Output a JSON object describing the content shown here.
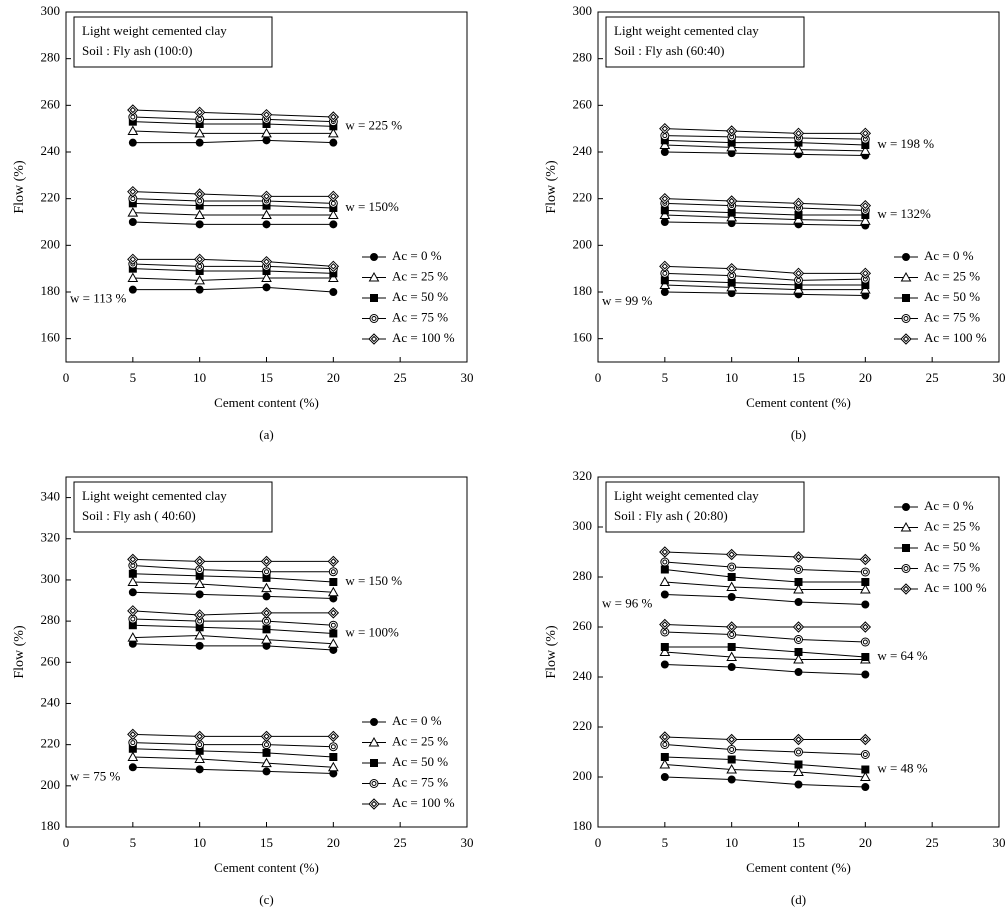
{
  "chart_data": [
    {
      "type": "line",
      "panel": "(a)",
      "box": [
        "Light weight cemented clay",
        "Soil : Fly ash (100:0)"
      ],
      "xlabel": "Cement content (%)",
      "ylabel": "Flow (%)",
      "xlim": [
        0,
        30
      ],
      "xticks": [
        0,
        5,
        10,
        15,
        20,
        25,
        30
      ],
      "ylim": [
        150,
        300
      ],
      "yticks": [
        160,
        180,
        200,
        220,
        240,
        260,
        280,
        300
      ],
      "legend": "lower right",
      "x": [
        5,
        10,
        15,
        20
      ],
      "legend_entries": [
        {
          "name": "Ac = 0 %",
          "marker": "circle-filled"
        },
        {
          "name": "Ac = 25 %",
          "marker": "triangle-open"
        },
        {
          "name": "Ac = 50 %",
          "marker": "square-filled"
        },
        {
          "name": "Ac = 75 %",
          "marker": "circle-ring"
        },
        {
          "name": "Ac = 100 %",
          "marker": "diamond-ring"
        }
      ],
      "groups": [
        {
          "label": "w = 225 %",
          "label_side": "right",
          "series": [
            [
              244,
              244,
              245,
              244
            ],
            [
              249,
              248,
              248,
              248
            ],
            [
              253,
              252,
              252,
              251
            ],
            [
              255,
              254,
              254,
              253
            ],
            [
              258,
              257,
              256,
              255
            ]
          ]
        },
        {
          "label": "w = 150%",
          "label_side": "right",
          "series": [
            [
              210,
              209,
              209,
              209
            ],
            [
              214,
              213,
              213,
              213
            ],
            [
              218,
              217,
              217,
              216
            ],
            [
              220,
              219,
              219,
              218
            ],
            [
              223,
              222,
              221,
              221
            ]
          ]
        },
        {
          "label": "w = 113 %",
          "label_side": "left",
          "series": [
            [
              181,
              181,
              182,
              180
            ],
            [
              186,
              185,
              186,
              186
            ],
            [
              190,
              189,
              189,
              188
            ],
            [
              192,
              191,
              191,
              190
            ],
            [
              194,
              194,
              193,
              191
            ]
          ]
        }
      ]
    },
    {
      "type": "line",
      "panel": "(b)",
      "box": [
        "Light weight cemented clay",
        "Soil : Fly ash (60:40)"
      ],
      "xlabel": "Cement content (%)",
      "ylabel": "Flow (%)",
      "xlim": [
        0,
        30
      ],
      "xticks": [
        0,
        5,
        10,
        15,
        20,
        25,
        30
      ],
      "ylim": [
        150,
        300
      ],
      "yticks": [
        160,
        180,
        200,
        220,
        240,
        260,
        280,
        300
      ],
      "legend": "lower right",
      "x": [
        5,
        10,
        15,
        20
      ],
      "legend_entries": [
        {
          "name": "Ac = 0 %",
          "marker": "circle-filled"
        },
        {
          "name": "Ac = 25 %",
          "marker": "triangle-open"
        },
        {
          "name": "Ac = 50 %",
          "marker": "square-filled"
        },
        {
          "name": "Ac = 75 %",
          "marker": "circle-ring"
        },
        {
          "name": "Ac = 100 %",
          "marker": "diamond-ring"
        }
      ],
      "groups": [
        {
          "label": "w = 198 %",
          "label_side": "right",
          "series": [
            [
              240,
              239.5,
              239,
              238.5
            ],
            [
              243,
              242,
              241,
              240.5
            ],
            [
              245,
              244,
              244,
              243
            ],
            [
              247,
              246.5,
              246,
              245.5
            ],
            [
              250,
              249,
              248,
              248
            ]
          ]
        },
        {
          "label": "w = 132%",
          "label_side": "right",
          "series": [
            [
              210,
              209.5,
              209,
              208.5
            ],
            [
              213,
              212,
              211,
              210.5
            ],
            [
              215,
              214,
              213,
              213
            ],
            [
              218,
              217,
              216,
              215
            ],
            [
              220,
              219,
              218,
              217
            ]
          ]
        },
        {
          "label": "w = 99 %",
          "label_side": "left",
          "series": [
            [
              180,
              179.5,
              179,
              178.5
            ],
            [
              183,
              182,
              181,
              181
            ],
            [
              185,
              184,
              183,
              183
            ],
            [
              188,
              187,
              185,
              185.5
            ],
            [
              191,
              190,
              188,
              188
            ]
          ]
        }
      ]
    },
    {
      "type": "line",
      "panel": "(c)",
      "box": [
        "Light weight cemented clay",
        "Soil : Fly ash ( 40:60)"
      ],
      "xlabel": "Cement content (%)",
      "ylabel": "Flow (%)",
      "xlim": [
        0,
        30
      ],
      "xticks": [
        0,
        5,
        10,
        15,
        20,
        25,
        30
      ],
      "ylim": [
        180,
        350
      ],
      "yticks": [
        180,
        200,
        220,
        240,
        260,
        280,
        300,
        320,
        340
      ],
      "legend": "lower right",
      "x": [
        5,
        10,
        15,
        20
      ],
      "legend_entries": [
        {
          "name": "Ac = 0 %",
          "marker": "circle-filled"
        },
        {
          "name": "Ac = 25 %",
          "marker": "triangle-open"
        },
        {
          "name": "Ac = 50 %",
          "marker": "square-filled"
        },
        {
          "name": "Ac = 75 %",
          "marker": "circle-ring"
        },
        {
          "name": "Ac = 100 %",
          "marker": "diamond-ring"
        }
      ],
      "groups": [
        {
          "label": "w = 150 %",
          "label_side": "right",
          "series": [
            [
              294,
              293,
              292,
              291
            ],
            [
              299,
              298,
              296,
              294
            ],
            [
              303,
              302,
              301,
              299
            ],
            [
              307,
              305,
              304,
              304
            ],
            [
              310,
              309,
              309,
              309
            ]
          ]
        },
        {
          "label": "w = 100%",
          "label_side": "right",
          "series": [
            [
              269,
              268,
              268,
              266
            ],
            [
              272,
              273,
              271,
              269
            ],
            [
              278,
              277,
              276,
              274
            ],
            [
              281,
              280,
              280,
              278
            ],
            [
              285,
              283,
              284,
              284
            ]
          ]
        },
        {
          "label": "w = 75 %",
          "label_side": "left",
          "series": [
            [
              209,
              208,
              207,
              206
            ],
            [
              214,
              213,
              211,
              209
            ],
            [
              218,
              217,
              216,
              214
            ],
            [
              221,
              220,
              220,
              219
            ],
            [
              225,
              224,
              224,
              224
            ]
          ]
        }
      ]
    },
    {
      "type": "line",
      "panel": "(d)",
      "box": [
        "Light weight cemented clay",
        "Soil : Fly ash ( 20:80)"
      ],
      "xlabel": "Cement content (%)",
      "ylabel": "Flow (%)",
      "xlim": [
        0,
        30
      ],
      "xticks": [
        0,
        5,
        10,
        15,
        20,
        25,
        30
      ],
      "ylim": [
        180,
        320
      ],
      "yticks": [
        180,
        200,
        220,
        240,
        260,
        280,
        300,
        320
      ],
      "legend": "upper right",
      "x": [
        5,
        10,
        15,
        20
      ],
      "legend_entries": [
        {
          "name": "Ac = 0 %",
          "marker": "circle-filled"
        },
        {
          "name": "Ac = 25 %",
          "marker": "triangle-open"
        },
        {
          "name": "Ac = 50 %",
          "marker": "square-filled"
        },
        {
          "name": "Ac = 75 %",
          "marker": "circle-ring"
        },
        {
          "name": "Ac = 100 %",
          "marker": "diamond-ring"
        }
      ],
      "groups": [
        {
          "label": "w = 96 %",
          "label_side": "left",
          "series": [
            [
              273,
              272,
              270,
              269
            ],
            [
              278,
              276,
              275,
              275
            ],
            [
              283,
              280,
              278,
              278
            ],
            [
              286,
              284,
              283,
              282
            ],
            [
              290,
              289,
              288,
              287
            ]
          ]
        },
        {
          "label": "w = 64 %",
          "label_side": "right",
          "series": [
            [
              245,
              244,
              242,
              241
            ],
            [
              250,
              248,
              247,
              247
            ],
            [
              252,
              252,
              250,
              248
            ],
            [
              258,
              257,
              255,
              254
            ],
            [
              261,
              260,
              260,
              260
            ]
          ]
        },
        {
          "label": "w = 48 %",
          "label_side": "right",
          "series": [
            [
              200,
              199,
              197,
              196
            ],
            [
              205,
              203,
              202,
              200
            ],
            [
              208,
              207,
              205,
              203
            ],
            [
              213,
              211,
              210,
              209
            ],
            [
              216,
              215,
              215,
              215
            ]
          ]
        }
      ]
    }
  ]
}
